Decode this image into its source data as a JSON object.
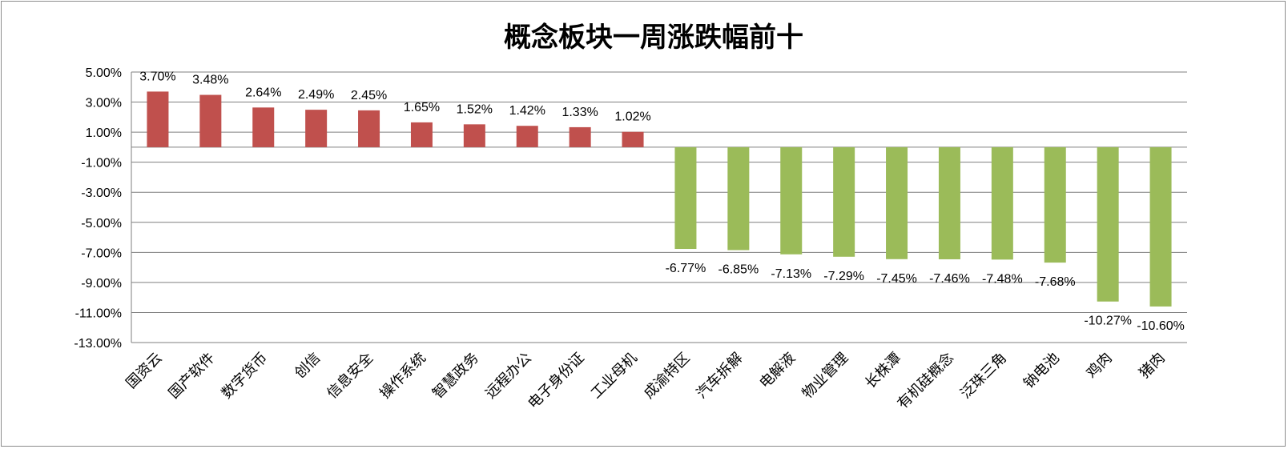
{
  "chart_data": {
    "type": "bar",
    "title": "概念板块一周涨跌幅前十",
    "xlabel": "",
    "ylabel": "",
    "ylim": [
      -13,
      5
    ],
    "yticks": [
      5,
      3,
      1,
      -1,
      -3,
      -5,
      -7,
      -9,
      -11,
      -13
    ],
    "ytick_labels": [
      "5.00%",
      "3.00%",
      "1.00%",
      "-1.00%",
      "-3.00%",
      "-5.00%",
      "-7.00%",
      "-9.00%",
      "-11.00%",
      "-13.00%"
    ],
    "grid": true,
    "legend": "none",
    "categories": [
      "国资云",
      "国产软件",
      "数字货币",
      "创信",
      "信息安全",
      "操作系统",
      "智慧政务",
      "远程办公",
      "电子身份证",
      "工业母机",
      "成渝特区",
      "汽车拆解",
      "电解液",
      "物业管理",
      "长株潭",
      "有机硅概念",
      "泛珠三角",
      "钠电池",
      "鸡肉",
      "猪肉"
    ],
    "values": [
      3.7,
      3.48,
      2.64,
      2.49,
      2.45,
      1.65,
      1.52,
      1.42,
      1.33,
      1.02,
      -6.77,
      -6.85,
      -7.13,
      -7.29,
      -7.45,
      -7.46,
      -7.48,
      -7.68,
      -10.27,
      -10.6
    ],
    "data_labels": [
      "3.70%",
      "3.48%",
      "2.64%",
      "2.49%",
      "2.45%",
      "1.65%",
      "1.52%",
      "1.42%",
      "1.33%",
      "1.02%",
      "-6.77%",
      "-6.85%",
      "-7.13%",
      "-7.29%",
      "-7.45%",
      "-7.46%",
      "-7.48%",
      "-7.68%",
      "-10.27%",
      "-10.60%"
    ],
    "colors": {
      "positive": "#c0504d",
      "negative": "#9bbb59",
      "grid": "#7f7f7f",
      "axis": "#7f7f7f"
    }
  }
}
